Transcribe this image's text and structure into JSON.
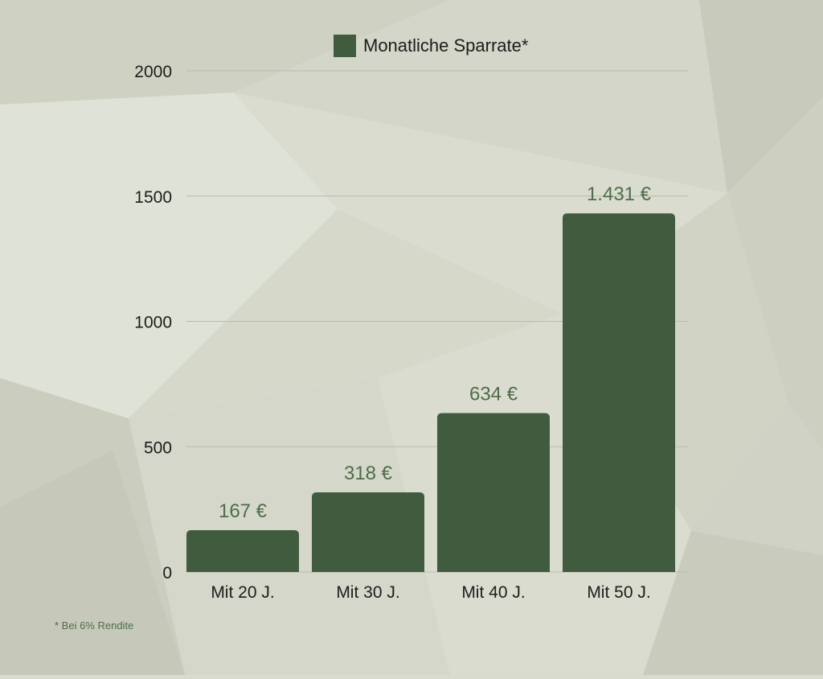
{
  "chart_data": {
    "type": "bar",
    "categories": [
      "Mit 20 J.",
      "Mit 30 J.",
      "Mit 40 J.",
      "Mit 50 J."
    ],
    "values": [
      167,
      318,
      634,
      1431
    ],
    "value_labels": [
      "167 €",
      "318 €",
      "634 €",
      "1.431 €"
    ],
    "series": [
      {
        "name": "Monatliche Sparrate*",
        "values": [
          167,
          318,
          634,
          1431
        ]
      }
    ],
    "y_ticks": [
      "0",
      "500",
      "1000",
      "1500",
      "2000"
    ],
    "ylim": [
      0,
      2000
    ],
    "grid": true,
    "legend_position": "top-center",
    "footnote": "* Bei 6% Rendite",
    "colors": {
      "bar": "#415b3e",
      "value_label": "#4e6d4a",
      "footnote": "#4e6d4a",
      "gridline": "#b9bcac",
      "axis_text": "#1d1d1b"
    }
  }
}
